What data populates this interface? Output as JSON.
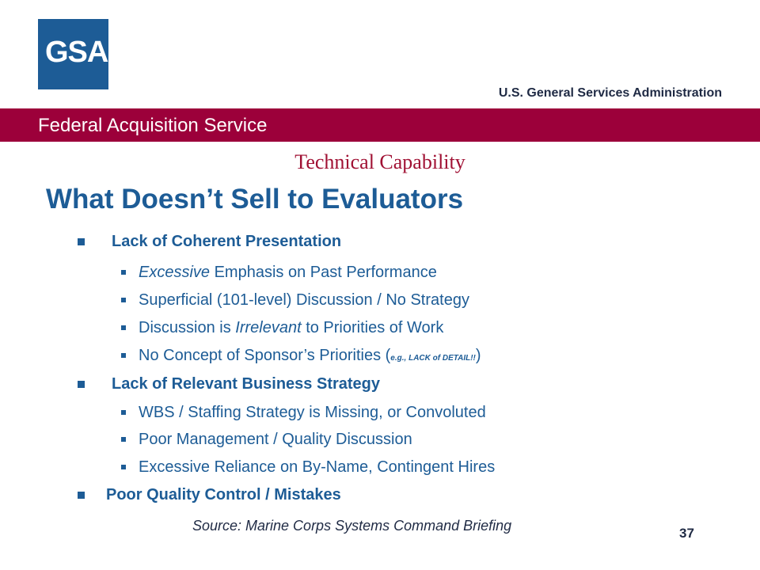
{
  "logo": {
    "text": "GSA"
  },
  "agency": "U.S. General Services Administration",
  "banner": "Federal Acquisition Service",
  "section": "Technical Capability",
  "title": "What Doesn’t Sell to Evaluators",
  "groups": [
    {
      "heading": "Lack of Coherent Presentation",
      "items": [
        {
          "emph": "Excessive",
          "rest": " Emphasis on Past Performance"
        },
        {
          "text": "Superficial (101-level) Discussion / No Strategy"
        },
        {
          "pre": "Discussion is ",
          "emph": "Irrelevant",
          "post": " to Priorities of Work"
        },
        {
          "pre": "No Concept of Sponsor’s Priorities (",
          "note": "e.g., LACK of DETAIL!!",
          "post": ")"
        }
      ]
    },
    {
      "heading": "Lack of Relevant Business Strategy",
      "items": [
        {
          "text": "WBS / Staffing Strategy is Missing, or Convoluted"
        },
        {
          "text": "Poor Management / Quality Discussion"
        },
        {
          "text": "Excessive Reliance on By-Name, Contingent Hires"
        }
      ]
    },
    {
      "heading": "Poor Quality Control / Mistakes",
      "items": []
    }
  ],
  "source": "Source:  Marine Corps Systems Command Briefing",
  "page_number": "37",
  "colors": {
    "brand_blue": "#1d5c96",
    "banner": "#9c003a",
    "section": "#a01033"
  }
}
